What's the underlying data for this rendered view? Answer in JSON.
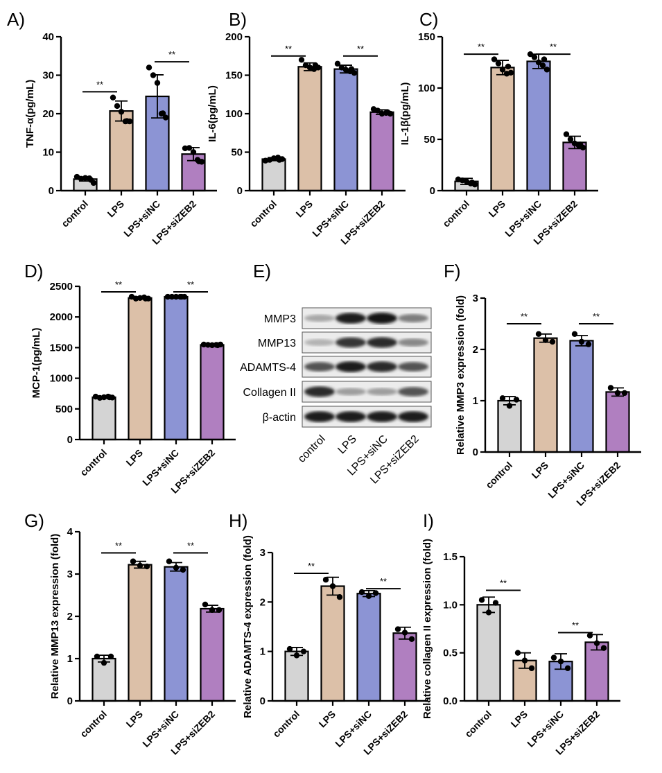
{
  "panel_labels": [
    "A)",
    "B)",
    "C)",
    "D)",
    "E)",
    "F)",
    "G)",
    "H)",
    "I)"
  ],
  "categories": [
    "control",
    "LPS",
    "LPS+siNC",
    "LPS+siZEB2"
  ],
  "colors": [
    "#d4d4d4",
    "#dcc0a8",
    "#8c94d4",
    "#b07fc0"
  ],
  "chart_data": [
    {
      "type": "bar",
      "panel": "A)",
      "ylabel": "TNF-α(pg/mL)",
      "ylim": [
        0,
        40
      ],
      "yticks": [
        0,
        10,
        20,
        30,
        40
      ],
      "values": [
        3.0,
        20.7,
        24.5,
        9.5
      ],
      "sd": [
        0.5,
        2.6,
        5.6,
        1.7
      ],
      "points": [
        [
          3.6,
          3.1,
          3.3,
          3.2,
          2.0,
          2.8
        ],
        [
          24.2,
          22.0,
          20.5,
          18.0,
          18.0,
          18.1
        ],
        [
          32.0,
          30.0,
          28.0,
          20.0,
          19.0,
          20.1
        ],
        [
          11.0,
          11.1,
          10.0,
          8.0,
          7.5,
          7.6
        ]
      ],
      "significance": [
        {
          "from": 0,
          "to": 1,
          "y": 25.7,
          "label": "**"
        },
        {
          "from": 2,
          "to": 3,
          "y": 33.5,
          "label": "**"
        }
      ]
    },
    {
      "type": "bar",
      "panel": "B)",
      "ylabel": "IL-6(pg/mL)",
      "ylim": [
        0,
        200
      ],
      "yticks": [
        0,
        50,
        100,
        150,
        200
      ],
      "values": [
        41,
        161,
        158,
        102
      ],
      "sd": [
        2,
        5,
        5,
        3
      ],
      "points": [
        [
          39,
          40,
          42,
          43,
          41,
          40
        ],
        [
          170,
          163,
          160,
          158,
          160,
          163
        ],
        [
          165,
          160,
          157,
          155,
          153,
          158
        ],
        [
          106,
          104,
          100,
          101,
          100,
          102
        ]
      ],
      "significance": [
        {
          "from": 0,
          "to": 1,
          "y": 175,
          "label": "**"
        },
        {
          "from": 2,
          "to": 3,
          "y": 175,
          "label": "**"
        }
      ]
    },
    {
      "type": "bar",
      "panel": "C)",
      "ylabel": "IL-1β(pg/mL)",
      "ylim": [
        0,
        150
      ],
      "yticks": [
        0,
        50,
        100,
        150
      ],
      "values": [
        9,
        120,
        126,
        47
      ],
      "sd": [
        3,
        7,
        7,
        6
      ],
      "points": [
        [
          11,
          10,
          9,
          7,
          6,
          8
        ],
        [
          128,
          124,
          118,
          114,
          115,
          121
        ],
        [
          133,
          130,
          125,
          122,
          118,
          128
        ],
        [
          55,
          50,
          46,
          44,
          42,
          45
        ]
      ],
      "significance": [
        {
          "from": 0,
          "to": 1,
          "y": 133,
          "label": "**"
        },
        {
          "from": 2,
          "to": 3,
          "y": 133,
          "label": "**"
        }
      ]
    },
    {
      "type": "bar",
      "panel": "D)",
      "ylabel": "MCP-1(pg/mL)",
      "ylim": [
        0,
        2500
      ],
      "yticks": [
        0,
        500,
        1000,
        1500,
        2000,
        2500
      ],
      "values": [
        690,
        2310,
        2330,
        1545
      ],
      "sd": [
        15,
        20,
        10,
        10
      ],
      "points": [
        [
          700,
          680,
          690,
          700,
          685,
          690
        ],
        [
          2330,
          2300,
          2310,
          2320,
          2300,
          2300
        ],
        [
          2330,
          2330,
          2330,
          2330,
          2330,
          2330
        ],
        [
          1550,
          1545,
          1540,
          1545,
          1550,
          1540
        ]
      ],
      "significance": [
        {
          "from": 0,
          "to": 1,
          "y": 2410,
          "label": "**"
        },
        {
          "from": 2,
          "to": 3,
          "y": 2410,
          "label": "**"
        }
      ]
    },
    {
      "type": "bar",
      "panel": "F)",
      "ylabel": "Relative MMP3 expression (fold)",
      "ylim": [
        0,
        3
      ],
      "yticks": [
        0,
        1,
        2,
        3
      ],
      "values": [
        1.0,
        2.22,
        2.17,
        1.17
      ],
      "sd": [
        0.08,
        0.08,
        0.1,
        0.08
      ],
      "points": [
        [
          1.05,
          0.9,
          1.02
        ],
        [
          2.3,
          2.18,
          2.15
        ],
        [
          2.3,
          2.15,
          2.1
        ],
        [
          1.25,
          1.15,
          1.15
        ]
      ],
      "significance": [
        {
          "from": 0,
          "to": 1,
          "y": 2.5,
          "label": "**"
        },
        {
          "from": 2,
          "to": 3,
          "y": 2.5,
          "label": "**"
        }
      ]
    },
    {
      "type": "bar",
      "panel": "G)",
      "ylabel": "Relative MMP13 expression (fold)",
      "ylim": [
        0,
        4
      ],
      "yticks": [
        0,
        1,
        2,
        3,
        4
      ],
      "values": [
        1.0,
        3.22,
        3.17,
        2.18
      ],
      "sd": [
        0.08,
        0.08,
        0.1,
        0.08
      ],
      "points": [
        [
          1.05,
          0.9,
          1.05
        ],
        [
          3.3,
          3.2,
          3.18
        ],
        [
          3.3,
          3.15,
          3.1
        ],
        [
          2.28,
          2.15,
          2.15
        ]
      ],
      "significance": [
        {
          "from": 0,
          "to": 1,
          "y": 3.5,
          "label": "**"
        },
        {
          "from": 2,
          "to": 3,
          "y": 3.5,
          "label": "**"
        }
      ]
    },
    {
      "type": "bar",
      "panel": "H)",
      "ylabel": "Relative ADAMTS-4 expression (fold)",
      "ylim": [
        0,
        3
      ],
      "yticks": [
        0,
        1,
        2,
        3
      ],
      "values": [
        1.0,
        2.32,
        2.17,
        1.37
      ],
      "sd": [
        0.08,
        0.18,
        0.06,
        0.12
      ],
      "points": [
        [
          1.05,
          0.92,
          1.0
        ],
        [
          2.45,
          2.32,
          2.1
        ],
        [
          2.2,
          2.12,
          2.18
        ],
        [
          1.45,
          1.38,
          1.25
        ]
      ],
      "significance": [
        {
          "from": 0,
          "to": 1,
          "y": 2.58,
          "label": "**"
        },
        {
          "from": 2,
          "to": 3,
          "y": 2.27,
          "label": "**"
        }
      ]
    },
    {
      "type": "bar",
      "panel": "I)",
      "ylabel": "Relative collagen II expression (fold)",
      "ylim": [
        0,
        1.5
      ],
      "yticks": [
        0,
        0.5,
        1.0,
        1.5
      ],
      "values": [
        1.0,
        0.42,
        0.41,
        0.61
      ],
      "sd": [
        0.08,
        0.08,
        0.08,
        0.08
      ],
      "points": [
        [
          1.05,
          0.92,
          1.02
        ],
        [
          0.5,
          0.42,
          0.34
        ],
        [
          0.45,
          0.41,
          0.34
        ],
        [
          0.68,
          0.6,
          0.55
        ]
      ],
      "significance": [
        {
          "from": 0,
          "to": 1,
          "y": 1.15,
          "label": "**"
        },
        {
          "from": 2,
          "to": 3,
          "y": 0.71,
          "label": "**"
        }
      ]
    }
  ],
  "western_blot": {
    "panel": "E)",
    "proteins": [
      "MMP3",
      "MMP13",
      "ADAMTS-4",
      "Collagen II",
      "β-actin"
    ],
    "band_intensity": [
      [
        0.3,
        0.95,
        1.0,
        0.5
      ],
      [
        0.25,
        0.85,
        0.9,
        0.45
      ],
      [
        0.7,
        0.95,
        0.9,
        0.7
      ],
      [
        0.9,
        0.35,
        0.35,
        0.7
      ],
      [
        0.95,
        0.95,
        0.95,
        0.95
      ]
    ]
  }
}
